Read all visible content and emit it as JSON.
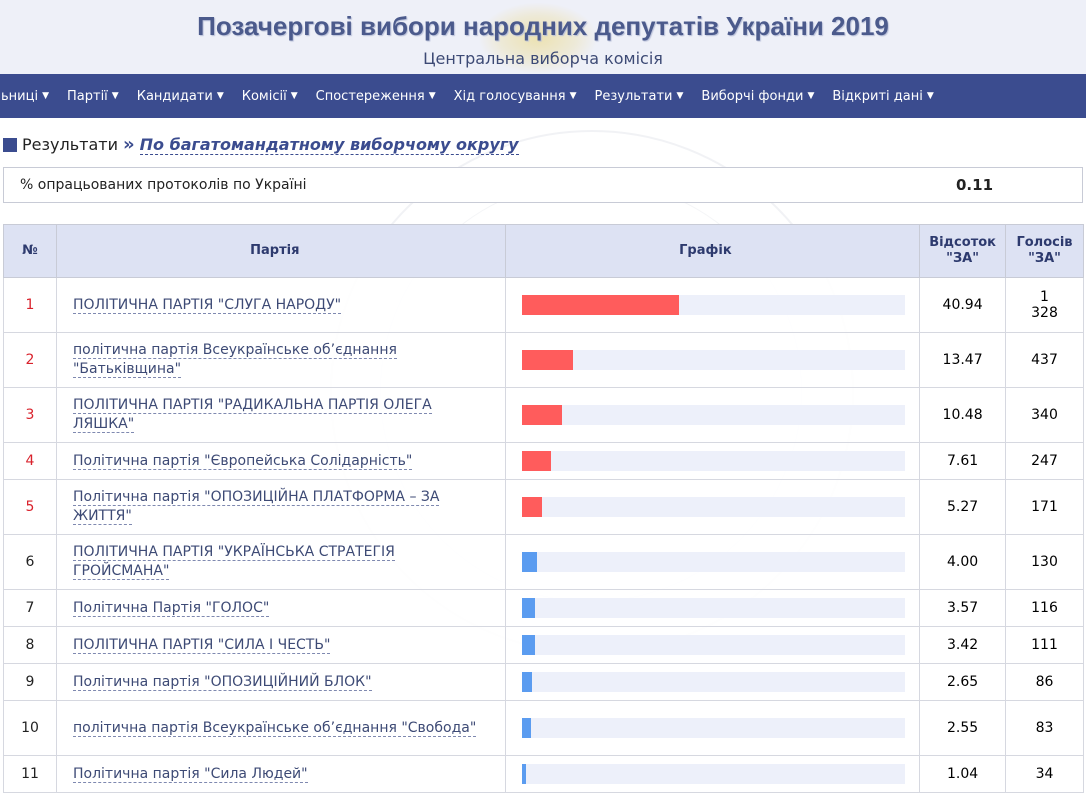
{
  "header": {
    "title": "Позачергові вибори народних депутатів України 2019",
    "subtitle": "Центральна виборча комісія"
  },
  "nav": [
    {
      "label": "ьниці",
      "icon": "caret-down-icon"
    },
    {
      "label": "Партії",
      "icon": "caret-down-icon"
    },
    {
      "label": "Кандидати",
      "icon": "caret-down-icon"
    },
    {
      "label": "Комісії",
      "icon": "caret-down-icon"
    },
    {
      "label": "Спостереження",
      "icon": "caret-down-icon"
    },
    {
      "label": "Хід голосування",
      "icon": "caret-down-icon"
    },
    {
      "label": "Результати",
      "icon": "caret-down-icon"
    },
    {
      "label": "Виборчі фонди",
      "icon": "caret-down-icon"
    },
    {
      "label": "Відкриті дані",
      "icon": "caret-down-icon"
    }
  ],
  "breadcrumb": {
    "root": "Результати",
    "separator": "»",
    "current": "По багатомандатному виборчому округу"
  },
  "processed": {
    "label": "% опрацьованих протоколів по Україні",
    "value": "0.11"
  },
  "table": {
    "headers": {
      "num": "№",
      "party": "Партія",
      "graph": "Графік",
      "pct": "Відсоток \"ЗА\"",
      "votes": "Голосів \"ЗА\""
    },
    "colors": {
      "passed": "#ff5c5c",
      "not_passed": "#5b9cf0",
      "track": "#edf0fa"
    },
    "rows": [
      {
        "num": "1",
        "party": "ПОЛІТИЧНА ПАРТІЯ \"СЛУГА НАРОДУ\"",
        "pct": "40.94",
        "votes": "1 328",
        "passed": true
      },
      {
        "num": "2",
        "party": "політична партія Всеукраїнське об’єднання \"Батьківщина\"",
        "pct": "13.47",
        "votes": "437",
        "passed": true
      },
      {
        "num": "3",
        "party": "ПОЛІТИЧНА ПАРТІЯ \"РАДИКАЛЬНА ПАРТІЯ ОЛЕГА ЛЯШКА\"",
        "pct": "10.48",
        "votes": "340",
        "passed": true
      },
      {
        "num": "4",
        "party": "Політична партія \"Європейська Солідарність\"",
        "pct": "7.61",
        "votes": "247",
        "passed": true
      },
      {
        "num": "5",
        "party": "Політична партія \"ОПОЗИЦІЙНА ПЛАТФОРМА – ЗА ЖИТТЯ\"",
        "pct": "5.27",
        "votes": "171",
        "passed": true
      },
      {
        "num": "6",
        "party": "ПОЛІТИЧНА ПАРТІЯ \"УКРАЇНСЬКА СТРАТЕГІЯ ГРОЙСМАНА\"",
        "pct": "4.00",
        "votes": "130",
        "passed": false
      },
      {
        "num": "7",
        "party": "Політична Партія \"ГОЛОС\"",
        "pct": "3.57",
        "votes": "116",
        "passed": false
      },
      {
        "num": "8",
        "party": "ПОЛІТИЧНА ПАРТІЯ \"СИЛА І ЧЕСТЬ\"",
        "pct": "3.42",
        "votes": "111",
        "passed": false
      },
      {
        "num": "9",
        "party": "Політична партія \"ОПОЗИЦІЙНИЙ БЛОК\"",
        "pct": "2.65",
        "votes": "86",
        "passed": false
      },
      {
        "num": "10",
        "party": "політична партія Всеукраїнське об’єднання \"Свобода\"",
        "pct": "2.55",
        "votes": "83",
        "passed": false
      },
      {
        "num": "11",
        "party": "Політична партія \"Сила Людей\"",
        "pct": "1.04",
        "votes": "34",
        "passed": false
      }
    ]
  }
}
